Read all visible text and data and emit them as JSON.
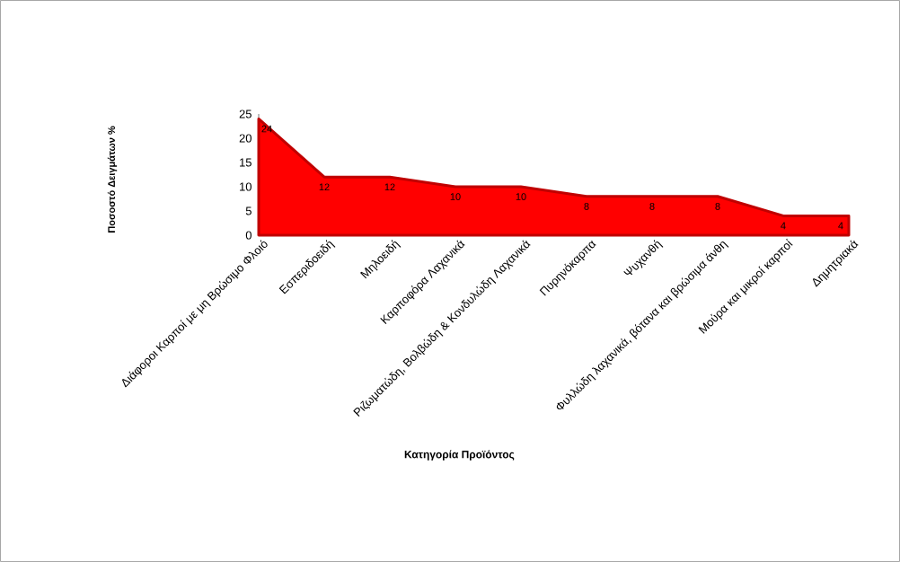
{
  "chart_data": {
    "type": "area",
    "xlabel": "Κατηγορία Προϊόντος",
    "ylabel": "Ποσοστό Δειγμάτων %",
    "categories": [
      "Διάφοροι Καρποί με μη Βρώσιμο Φλοιό",
      "Εσπεριδοειδή",
      "Μηλοειδή",
      "Καρποφόρα Λαχανικά",
      "Ριζωματώδη, Βολβώδη & Κονδυλώδη Λαχανικά",
      "Πυρηνόκαρπα",
      "Ψυχανθή",
      "Φυλλώδη λαχανικά, βότανα και βρώσιμα άνθη",
      "Μούρα και μικροί καρποί",
      "Δημητριακά"
    ],
    "values": [
      24,
      12,
      12,
      10,
      10,
      8,
      8,
      8,
      4,
      4
    ],
    "color": "#ff0000",
    "ylim": [
      0,
      25
    ],
    "yticks": [
      0,
      5,
      10,
      15,
      20,
      25
    ],
    "data_labels": true
  }
}
